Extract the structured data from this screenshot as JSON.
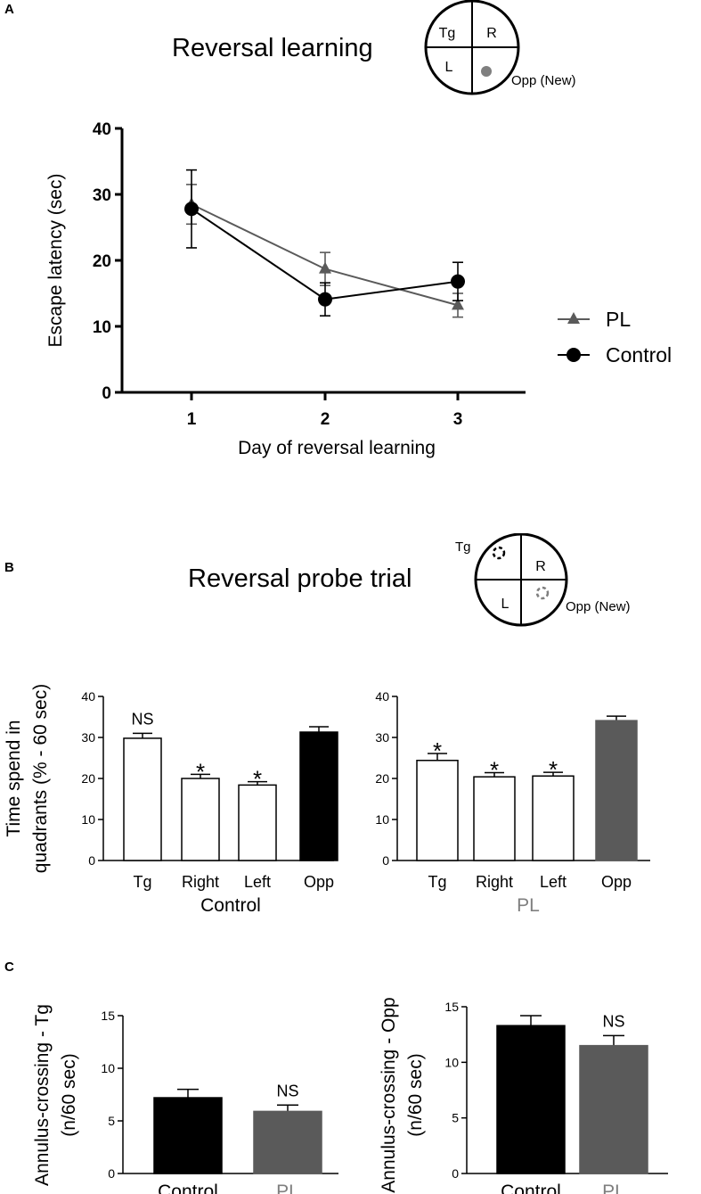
{
  "colors": {
    "black": "#000000",
    "gray": "#5a5a5a",
    "light_gray": "#7f7f7f",
    "white": "#ffffff"
  },
  "panel_a": {
    "letter": "A",
    "title": "Reversal learning",
    "maze": {
      "tl": "Tg",
      "tr": "R",
      "bl": "L",
      "br_label": "Opp (New)"
    }
  },
  "panel_b": {
    "letter": "B",
    "title": "Reversal probe trial",
    "maze": {
      "tg_outside": "Tg",
      "tr": "R",
      "bl": "L",
      "br_label": "Opp (New)"
    }
  },
  "panel_c": {
    "letter": "C"
  },
  "chart_data": [
    {
      "id": "escape-latency",
      "type": "line",
      "title": "",
      "xlabel": "Day of reversal learning",
      "ylabel": "Escape latency (sec)",
      "x": [
        1,
        2,
        3
      ],
      "x_tick_labels": [
        "1",
        "2",
        "3"
      ],
      "ylim": [
        0,
        40
      ],
      "y_ticks": [
        0,
        10,
        20,
        30,
        40
      ],
      "series": [
        {
          "name": "PL",
          "marker": "triangle",
          "color": "#5a5a5a",
          "values": [
            28.5,
            18.7,
            13.2
          ],
          "errors": [
            3.0,
            2.5,
            1.8
          ]
        },
        {
          "name": "Control",
          "marker": "circle",
          "color": "#000000",
          "values": [
            27.8,
            14.1,
            16.8
          ],
          "errors": [
            5.9,
            2.5,
            2.9
          ]
        }
      ],
      "legend": "right"
    },
    {
      "id": "probe-control",
      "type": "bar",
      "ylabel": "Time spend in quadrants (% - 60 sec)",
      "group_label": "Control",
      "categories": [
        "Tg",
        "Right",
        "Left",
        "Opp"
      ],
      "values": [
        29.8,
        20.0,
        18.4,
        31.3
      ],
      "errors": [
        1.2,
        1.0,
        0.8,
        1.3
      ],
      "annotations": [
        "NS",
        "*",
        "*",
        ""
      ],
      "fills": [
        "#ffffff",
        "#ffffff",
        "#ffffff",
        "#000000"
      ],
      "ylim": [
        0,
        40
      ],
      "y_ticks": [
        0,
        10,
        20,
        30,
        40
      ]
    },
    {
      "id": "probe-pl",
      "type": "bar",
      "ylabel": "",
      "group_label": "PL",
      "categories": [
        "Tg",
        "Right",
        "Left",
        "Opp"
      ],
      "values": [
        24.4,
        20.4,
        20.6,
        34.1
      ],
      "errors": [
        1.7,
        1.0,
        0.9,
        1.1
      ],
      "annotations": [
        "*",
        "*",
        "*",
        ""
      ],
      "fills": [
        "#ffffff",
        "#ffffff",
        "#ffffff",
        "#5a5a5a"
      ],
      "ylim": [
        0,
        40
      ],
      "y_ticks": [
        0,
        10,
        20,
        30,
        40
      ]
    },
    {
      "id": "annulus-tg",
      "type": "bar",
      "ylabel": "Annulus-crossing - Tg (n/60 sec)",
      "categories": [
        "Control",
        "PL"
      ],
      "values": [
        7.2,
        5.9
      ],
      "errors": [
        0.8,
        0.6
      ],
      "annotations": [
        "",
        "NS"
      ],
      "fills": [
        "#000000",
        "#5a5a5a"
      ],
      "ylim": [
        0,
        15
      ],
      "y_ticks": [
        0,
        5,
        10,
        15
      ]
    },
    {
      "id": "annulus-opp",
      "type": "bar",
      "ylabel": "Annulus-crossing - Opp (n/60 sec)",
      "categories": [
        "Control",
        "PL"
      ],
      "values": [
        13.3,
        11.5
      ],
      "errors": [
        0.9,
        0.9
      ],
      "annotations": [
        "",
        "NS"
      ],
      "fills": [
        "#000000",
        "#5a5a5a"
      ],
      "ylim": [
        0,
        15
      ],
      "y_ticks": [
        0,
        5,
        10,
        15
      ]
    }
  ]
}
